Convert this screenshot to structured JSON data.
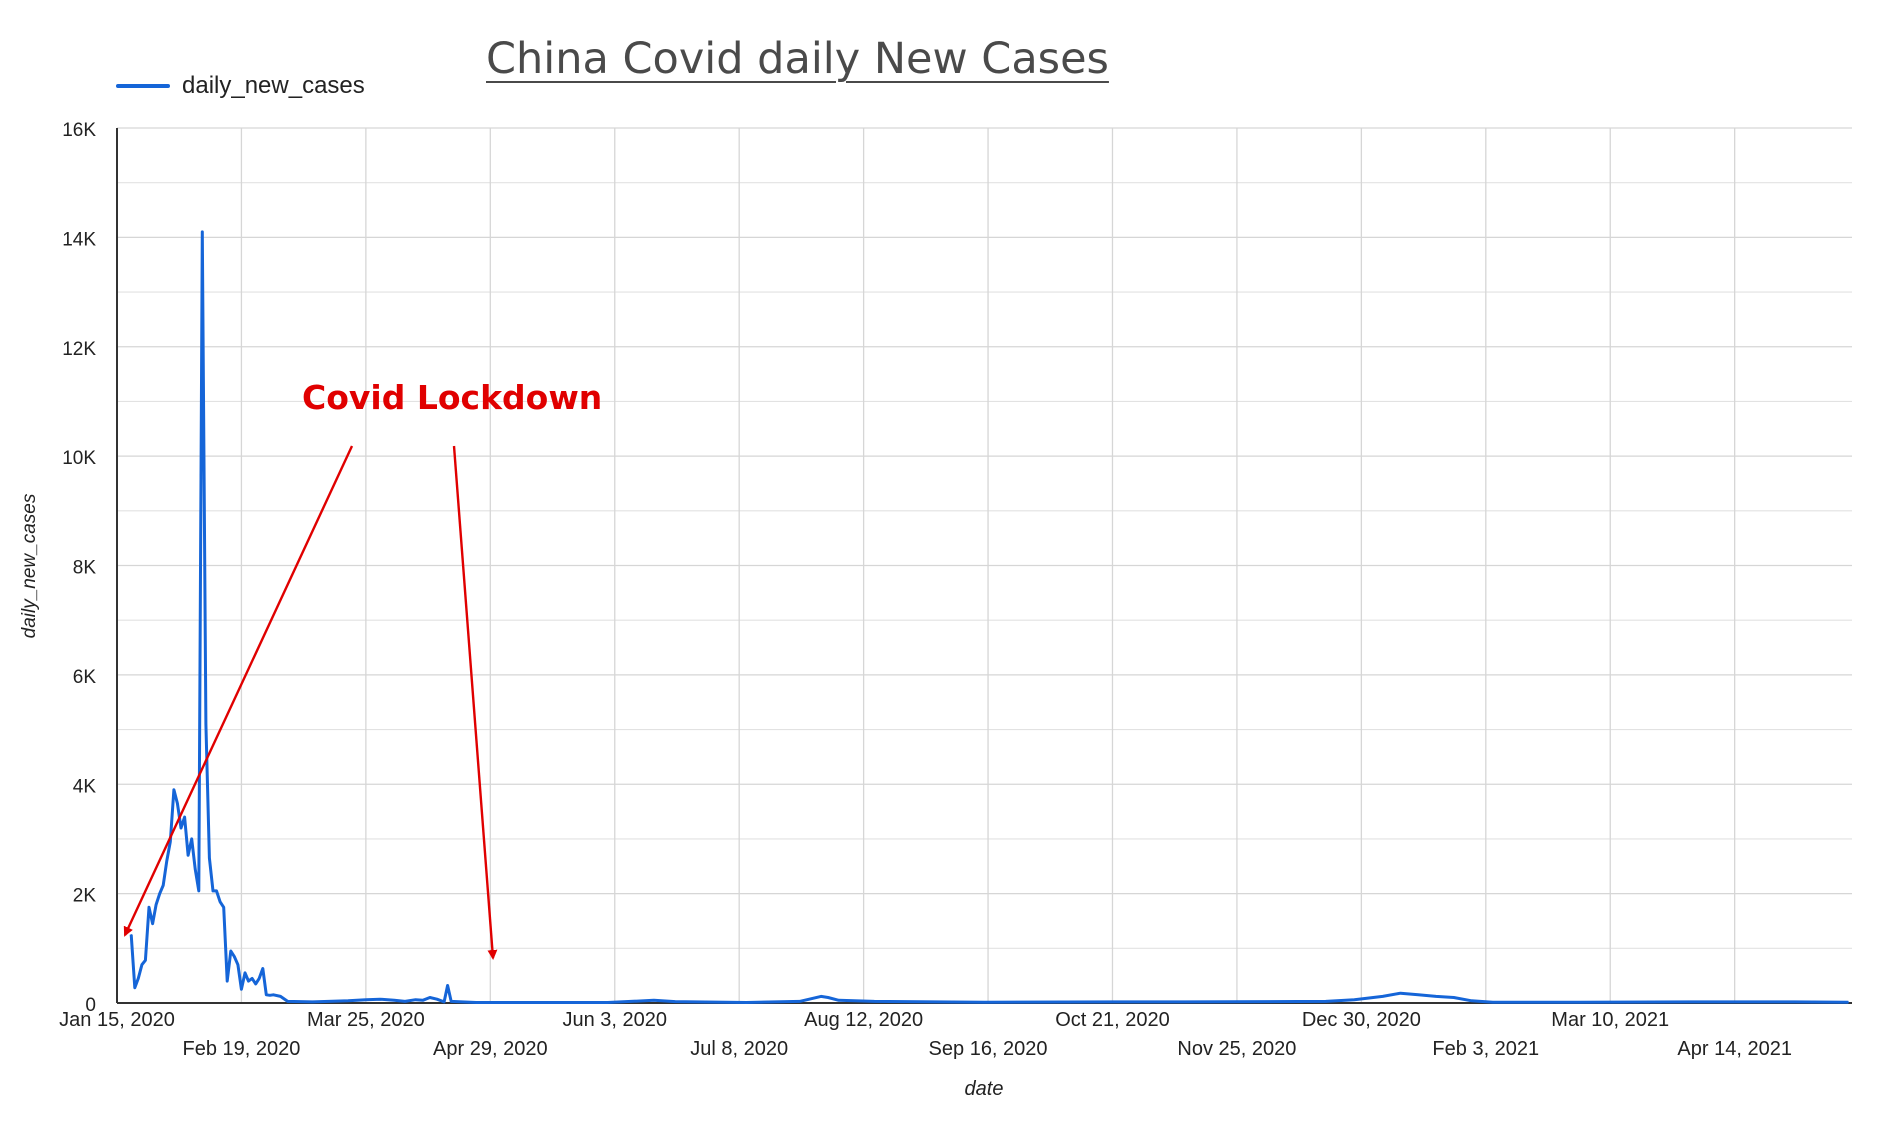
{
  "chart_data": {
    "type": "line",
    "title": "China Covid daily New Cases",
    "xlabel": "date",
    "ylabel": "daily_new_cases",
    "legend": {
      "position": "top-left",
      "entries": [
        "daily_new_cases"
      ]
    },
    "grid": true,
    "ylim": [
      0,
      16000
    ],
    "xlim": [
      "2020-01-15",
      "2021-05-17"
    ],
    "y_ticks": [
      {
        "value": 0,
        "label": "0"
      },
      {
        "value": 2000,
        "label": "2K"
      },
      {
        "value": 4000,
        "label": "4K"
      },
      {
        "value": 6000,
        "label": "6K"
      },
      {
        "value": 8000,
        "label": "8K"
      },
      {
        "value": 10000,
        "label": "10K"
      },
      {
        "value": 12000,
        "label": "12K"
      },
      {
        "value": 14000,
        "label": "14K"
      },
      {
        "value": 16000,
        "label": "16K"
      }
    ],
    "x_ticks": [
      {
        "date": "2020-01-15",
        "label": "Jan 15, 2020",
        "row": 0
      },
      {
        "date": "2020-02-19",
        "label": "Feb 19, 2020",
        "row": 1
      },
      {
        "date": "2020-03-25",
        "label": "Mar 25, 2020",
        "row": 0
      },
      {
        "date": "2020-04-29",
        "label": "Apr 29, 2020",
        "row": 1
      },
      {
        "date": "2020-06-03",
        "label": "Jun 3, 2020",
        "row": 0
      },
      {
        "date": "2020-07-08",
        "label": "Jul 8, 2020",
        "row": 1
      },
      {
        "date": "2020-08-12",
        "label": "Aug 12, 2020",
        "row": 0
      },
      {
        "date": "2020-09-16",
        "label": "Sep 16, 2020",
        "row": 1
      },
      {
        "date": "2020-10-21",
        "label": "Oct 21, 2020",
        "row": 0
      },
      {
        "date": "2020-11-25",
        "label": "Nov 25, 2020",
        "row": 1
      },
      {
        "date": "2020-12-30",
        "label": "Dec 30, 2020",
        "row": 0
      },
      {
        "date": "2021-02-03",
        "label": "Feb 3, 2021",
        "row": 1
      },
      {
        "date": "2021-03-10",
        "label": "Mar 10, 2021",
        "row": 0
      },
      {
        "date": "2021-04-14",
        "label": "Apr 14, 2021",
        "row": 1
      }
    ],
    "series": [
      {
        "name": "daily_new_cases",
        "color": "#1565d8",
        "points": [
          [
            "2020-01-19",
            1250
          ],
          [
            "2020-01-20",
            280
          ],
          [
            "2020-01-21",
            450
          ],
          [
            "2020-01-22",
            700
          ],
          [
            "2020-01-23",
            780
          ],
          [
            "2020-01-24",
            1750
          ],
          [
            "2020-01-25",
            1450
          ],
          [
            "2020-01-26",
            1800
          ],
          [
            "2020-01-27",
            2000
          ],
          [
            "2020-01-28",
            2150
          ],
          [
            "2020-01-29",
            2600
          ],
          [
            "2020-01-30",
            2950
          ],
          [
            "2020-01-31",
            3900
          ],
          [
            "2020-02-01",
            3650
          ],
          [
            "2020-02-02",
            3200
          ],
          [
            "2020-02-03",
            3400
          ],
          [
            "2020-02-04",
            2700
          ],
          [
            "2020-02-05",
            3000
          ],
          [
            "2020-02-06",
            2450
          ],
          [
            "2020-02-07",
            2050
          ],
          [
            "2020-02-08",
            14100
          ],
          [
            "2020-02-09",
            5100
          ],
          [
            "2020-02-10",
            2650
          ],
          [
            "2020-02-11",
            2050
          ],
          [
            "2020-02-12",
            2050
          ],
          [
            "2020-02-13",
            1850
          ],
          [
            "2020-02-14",
            1750
          ],
          [
            "2020-02-15",
            400
          ],
          [
            "2020-02-16",
            950
          ],
          [
            "2020-02-17",
            850
          ],
          [
            "2020-02-18",
            700
          ],
          [
            "2020-02-19",
            250
          ],
          [
            "2020-02-20",
            550
          ],
          [
            "2020-02-21",
            400
          ],
          [
            "2020-02-22",
            450
          ],
          [
            "2020-02-23",
            350
          ],
          [
            "2020-02-24",
            450
          ],
          [
            "2020-02-25",
            630
          ],
          [
            "2020-02-26",
            150
          ],
          [
            "2020-02-27",
            140
          ],
          [
            "2020-02-28",
            150
          ],
          [
            "2020-03-01",
            120
          ],
          [
            "2020-03-03",
            30
          ],
          [
            "2020-03-10",
            20
          ],
          [
            "2020-03-20",
            40
          ],
          [
            "2020-03-25",
            60
          ],
          [
            "2020-03-29",
            70
          ],
          [
            "2020-04-02",
            50
          ],
          [
            "2020-04-05",
            30
          ],
          [
            "2020-04-08",
            60
          ],
          [
            "2020-04-10",
            50
          ],
          [
            "2020-04-12",
            100
          ],
          [
            "2020-04-14",
            70
          ],
          [
            "2020-04-16",
            20
          ],
          [
            "2020-04-17",
            320
          ],
          [
            "2020-04-18",
            30
          ],
          [
            "2020-04-25",
            10
          ],
          [
            "2020-05-15",
            10
          ],
          [
            "2020-06-01",
            10
          ],
          [
            "2020-06-14",
            50
          ],
          [
            "2020-06-20",
            25
          ],
          [
            "2020-07-10",
            10
          ],
          [
            "2020-07-25",
            30
          ],
          [
            "2020-07-31",
            120
          ],
          [
            "2020-08-02",
            100
          ],
          [
            "2020-08-05",
            50
          ],
          [
            "2020-08-15",
            30
          ],
          [
            "2020-09-15",
            15
          ],
          [
            "2020-10-21",
            20
          ],
          [
            "2020-11-10",
            20
          ],
          [
            "2020-12-20",
            30
          ],
          [
            "2020-12-28",
            60
          ],
          [
            "2021-01-05",
            120
          ],
          [
            "2021-01-10",
            180
          ],
          [
            "2021-01-15",
            150
          ],
          [
            "2021-01-20",
            120
          ],
          [
            "2021-01-25",
            100
          ],
          [
            "2021-01-30",
            40
          ],
          [
            "2021-02-05",
            15
          ],
          [
            "2021-03-01",
            15
          ],
          [
            "2021-04-01",
            20
          ],
          [
            "2021-05-01",
            20
          ],
          [
            "2021-05-16",
            15
          ]
        ]
      }
    ],
    "annotations": [
      {
        "text": "Covid Lockdown",
        "color": "#e00000",
        "arrows_to": [
          "2020-01-17",
          "2020-04-29"
        ]
      }
    ]
  }
}
